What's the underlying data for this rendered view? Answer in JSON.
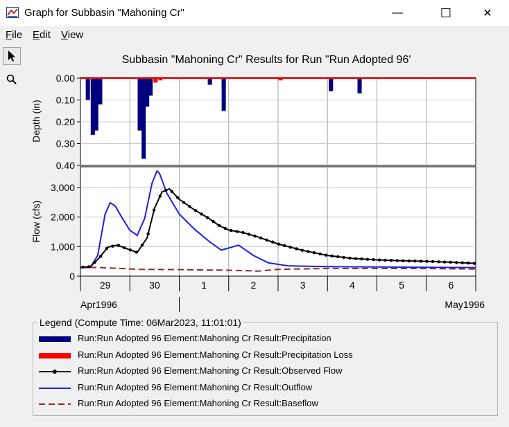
{
  "window": {
    "title": "Graph for Subbasin \"Mahoning Cr\"",
    "minimize_glyph": "—",
    "maximize_glyph": "☐",
    "close_glyph": "✕"
  },
  "menu": [
    {
      "label": "File",
      "accel": "F",
      "rest": "ile"
    },
    {
      "label": "Edit",
      "accel": "E",
      "rest": "dit"
    },
    {
      "label": "View",
      "accel": "V",
      "rest": "iew"
    }
  ],
  "tools": [
    {
      "name": "pointer-tool",
      "icon": "cursor-arrow-icon"
    },
    {
      "name": "zoom-tool",
      "icon": "magnifier-icon"
    }
  ],
  "colors": {
    "precip": "#00007f",
    "precip_loss": "#ff0000",
    "observed": "#000000",
    "outflow": "#1e1ee6",
    "baseflow": "#8b2a2a"
  },
  "chart_data": {
    "type": "bar+line",
    "title": "Subbasin \"Mahoning Cr\" Results for Run \"Run Adopted 96'",
    "x_tick_labels": [
      "29",
      "30",
      "1",
      "2",
      "3",
      "4",
      "5",
      "6"
    ],
    "x_month_labels": [
      "Apr1996",
      "May1996"
    ],
    "x_range_days": [
      0,
      8
    ],
    "depth_panel": {
      "ylabel": "Depth (in)",
      "ylim": [
        0,
        0.4
      ],
      "inverted": true,
      "ticks": [
        "0.00",
        "0.10",
        "0.20",
        "0.30",
        "0.40"
      ],
      "tick_values": [
        0,
        0.1,
        0.2,
        0.3,
        0.4
      ],
      "precipitation": [
        {
          "t": 0.15,
          "v": 0.1
        },
        {
          "t": 0.25,
          "v": 0.26
        },
        {
          "t": 0.32,
          "v": 0.24
        },
        {
          "t": 0.4,
          "v": 0.12
        },
        {
          "t": 1.2,
          "v": 0.24
        },
        {
          "t": 1.28,
          "v": 0.37
        },
        {
          "t": 1.35,
          "v": 0.13
        },
        {
          "t": 1.42,
          "v": 0.08
        },
        {
          "t": 2.62,
          "v": 0.03
        },
        {
          "t": 2.9,
          "v": 0.15
        },
        {
          "t": 5.07,
          "v": 0.06
        },
        {
          "t": 5.65,
          "v": 0.07
        }
      ],
      "loss": [
        {
          "t": 0.15,
          "v": 0.05
        },
        {
          "t": 0.25,
          "v": 0.06
        },
        {
          "t": 0.32,
          "v": 0.04
        },
        {
          "t": 0.4,
          "v": 0.04
        },
        {
          "t": 1.2,
          "v": 0.06
        },
        {
          "t": 1.28,
          "v": 0.07
        },
        {
          "t": 1.35,
          "v": 0.04
        },
        {
          "t": 1.42,
          "v": 0.03
        },
        {
          "t": 1.52,
          "v": 0.02
        },
        {
          "t": 1.62,
          "v": 0.01
        },
        {
          "t": 2.62,
          "v": 0.03
        },
        {
          "t": 2.9,
          "v": 0.05
        },
        {
          "t": 4.05,
          "v": 0.01
        },
        {
          "t": 5.07,
          "v": 0.05
        },
        {
          "t": 5.65,
          "v": 0.05
        }
      ]
    },
    "flow_panel": {
      "ylabel": "Flow (cfs)",
      "ylim": [
        0,
        3700
      ],
      "ticks": [
        "0",
        "1,000",
        "2,000",
        "3,000"
      ],
      "tick_values": [
        0,
        1000,
        2000,
        3000
      ],
      "observed": {
        "t": [
          0,
          0.2,
          0.4,
          0.55,
          0.75,
          0.95,
          1.15,
          1.35,
          1.5,
          1.65,
          1.8,
          2.0,
          2.3,
          2.6,
          2.8,
          3.0,
          3.3,
          3.6,
          4.0,
          4.5,
          5.0,
          5.5,
          6.0,
          6.5,
          7.0,
          7.5,
          8.0
        ],
        "v": [
          300,
          320,
          650,
          980,
          1050,
          920,
          800,
          1300,
          2300,
          2850,
          2950,
          2600,
          2250,
          1950,
          1720,
          1560,
          1470,
          1320,
          1090,
          870,
          700,
          600,
          550,
          520,
          500,
          470,
          430
        ]
      },
      "outflow": {
        "t": [
          0,
          0.2,
          0.35,
          0.5,
          0.6,
          0.7,
          0.85,
          1.0,
          1.15,
          1.3,
          1.45,
          1.55,
          1.6,
          1.75,
          2.0,
          2.3,
          2.6,
          2.85,
          3.0,
          3.2,
          3.5,
          3.8,
          4.2,
          5.0,
          6.0,
          7.0,
          8.0
        ],
        "v": [
          280,
          300,
          700,
          2100,
          2480,
          2380,
          1950,
          1550,
          1380,
          1950,
          3150,
          3560,
          3480,
          2800,
          2100,
          1600,
          1180,
          880,
          950,
          1050,
          700,
          450,
          350,
          320,
          310,
          300,
          290
        ]
      },
      "baseflow": {
        "t": [
          0,
          0.4,
          0.8,
          1.2,
          2.0,
          3.0,
          3.6,
          4.0,
          5.0,
          6.0,
          7.0,
          8.0
        ],
        "v": [
          300,
          290,
          260,
          230,
          220,
          200,
          170,
          230,
          260,
          260,
          255,
          240
        ]
      }
    },
    "legend": {
      "title": "Legend (Compute Time: 06Mar2023, 11:01:01)",
      "entries": [
        {
          "label": "Run:Run Adopted 96 Element:Mahoning Cr Result:Precipitation",
          "style": "thick-bar",
          "color_key": "precip"
        },
        {
          "label": "Run:Run Adopted 96 Element:Mahoning Cr Result:Precipitation Loss",
          "style": "thick-bar",
          "color_key": "precip_loss"
        },
        {
          "label": "Run:Run Adopted 96 Element:Mahoning Cr Result:Observed Flow",
          "style": "line-dots",
          "color_key": "observed"
        },
        {
          "label": "Run:Run Adopted 96 Element:Mahoning Cr Result:Outflow",
          "style": "line",
          "color_key": "outflow"
        },
        {
          "label": "Run:Run Adopted 96 Element:Mahoning Cr Result:Baseflow",
          "style": "dash",
          "color_key": "baseflow"
        }
      ]
    }
  }
}
